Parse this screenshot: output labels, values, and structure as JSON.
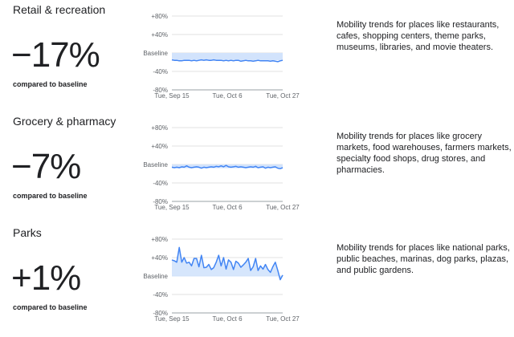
{
  "sections": [
    {
      "title": "Retail & recreation",
      "percent": "−17%",
      "compared": "compared to baseline",
      "description": "Mobility trends for places like restaurants, cafes, shopping centers, theme parks, museums, libraries, and movie theaters."
    },
    {
      "title": "Grocery & pharmacy",
      "percent": "−7%",
      "compared": "compared to baseline",
      "description": "Mobility trends for places like grocery markets, food warehouses, farmers markets, specialty food shops, drug stores, and pharmacies."
    },
    {
      "title": "Parks",
      "percent": "+1%",
      "compared": "compared to baseline",
      "description": "Mobility trends for places like national parks, public beaches, marinas, dog parks, plazas, and public gardens."
    }
  ],
  "colors": {
    "line": "#4285f4",
    "band": "#d2e3fc",
    "grid": "#e0e0e0",
    "text": "#202124"
  },
  "chart_data": [
    {
      "type": "line",
      "ylim": [
        -80,
        80
      ],
      "yticks": [
        "+80%",
        "+40%",
        "Baseline",
        "-40%",
        "-80%"
      ],
      "xticks": [
        "Tue, Sep 15",
        "Tue, Oct 6",
        "Tue, Oct 27"
      ],
      "band": [
        -16,
        0
      ],
      "values": [
        -15,
        -16,
        -16,
        -17,
        -17,
        -16,
        -16,
        -16,
        -17,
        -16,
        -17,
        -16,
        -15,
        -16,
        -15,
        -16,
        -16,
        -15,
        -16,
        -16,
        -16,
        -17,
        -16,
        -17,
        -16,
        -17,
        -16,
        -16,
        -18,
        -17,
        -16,
        -17,
        -17,
        -18,
        -17,
        -16,
        -17,
        -17,
        -17,
        -17,
        -18,
        -17,
        -18,
        -19,
        -17,
        -16
      ]
    },
    {
      "type": "line",
      "ylim": [
        -80,
        80
      ],
      "yticks": [
        "+80%",
        "+40%",
        "Baseline",
        "-40%",
        "-80%"
      ],
      "xticks": [
        "Tue, Sep 15",
        "Tue, Oct 6",
        "Tue, Oct 27"
      ],
      "band": [
        -8,
        0
      ],
      "values": [
        -6,
        -7,
        -6,
        -7,
        -5,
        -6,
        -3,
        -6,
        -7,
        -6,
        -5,
        -6,
        -8,
        -6,
        -7,
        -6,
        -5,
        -6,
        -4,
        -5,
        -3,
        -5,
        -2,
        -5,
        -6,
        -5,
        -4,
        -6,
        -5,
        -6,
        -7,
        -6,
        -5,
        -6,
        -4,
        -7,
        -6,
        -5,
        -8,
        -6,
        -7,
        -6,
        -5,
        -8,
        -9,
        -7
      ]
    },
    {
      "type": "line",
      "ylim": [
        -80,
        80
      ],
      "yticks": [
        "+80%",
        "+40%",
        "Baseline",
        "-40%",
        "-80%"
      ],
      "xticks": [
        "Tue, Sep 15",
        "Tue, Oct 6",
        "Tue, Oct 27"
      ],
      "band": [
        0,
        0
      ],
      "values": [
        35,
        33,
        30,
        62,
        30,
        40,
        28,
        30,
        22,
        38,
        38,
        20,
        45,
        18,
        19,
        25,
        14,
        18,
        30,
        45,
        22,
        40,
        15,
        35,
        30,
        14,
        32,
        28,
        19,
        24,
        30,
        38,
        12,
        20,
        38,
        12,
        22,
        15,
        25,
        14,
        8,
        20,
        30,
        12,
        -8,
        2
      ]
    }
  ]
}
